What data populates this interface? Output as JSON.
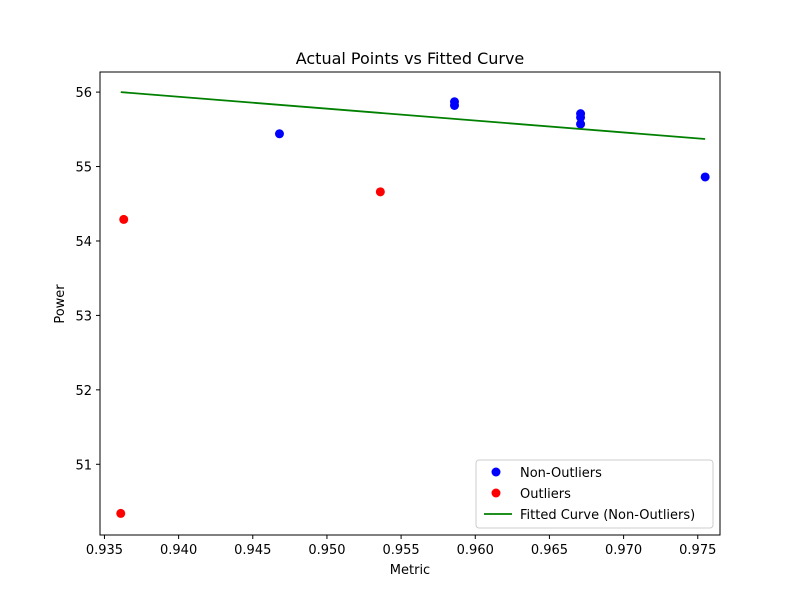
{
  "chart_data": {
    "type": "scatter",
    "title": "Actual Points vs Fitted Curve",
    "xlabel": "Metric",
    "ylabel": "Power",
    "xlim": [
      0.9347,
      0.9765
    ],
    "ylim": [
      50.05,
      56.27
    ],
    "xticks": [
      0.935,
      0.94,
      0.945,
      0.95,
      0.955,
      0.96,
      0.965,
      0.97,
      0.975
    ],
    "xtick_labels": [
      "0.935",
      "0.940",
      "0.945",
      "0.950",
      "0.955",
      "0.960",
      "0.965",
      "0.970",
      "0.975"
    ],
    "yticks": [
      51,
      52,
      53,
      54,
      55,
      56
    ],
    "ytick_labels": [
      "51",
      "52",
      "53",
      "54",
      "55",
      "56"
    ],
    "grid": false,
    "legend_position": "lower-right",
    "series": [
      {
        "name": "Non-Outliers",
        "kind": "scatter",
        "color": "#0000ff",
        "points": [
          [
            0.9468,
            55.44
          ],
          [
            0.9586,
            55.87
          ],
          [
            0.9586,
            55.82
          ],
          [
            0.9671,
            55.71
          ],
          [
            0.9671,
            55.66
          ],
          [
            0.9671,
            55.57
          ],
          [
            0.9755,
            54.86
          ]
        ]
      },
      {
        "name": "Outliers",
        "kind": "scatter",
        "color": "#ff0000",
        "points": [
          [
            0.9363,
            54.29
          ],
          [
            0.9536,
            54.66
          ],
          [
            0.9361,
            50.34
          ]
        ]
      },
      {
        "name": "Fitted Curve (Non-Outliers)",
        "kind": "line",
        "color": "#008000",
        "points": [
          [
            0.9361,
            56.0
          ],
          [
            0.9755,
            55.37
          ]
        ]
      }
    ]
  }
}
